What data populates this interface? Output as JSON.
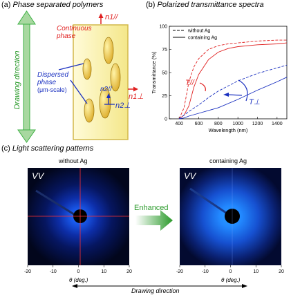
{
  "panel_a": {
    "label": "(a)",
    "title": "Phase separated polymers",
    "continuous_line1": "Continuous",
    "continuous_line2": "phase",
    "dispersed_line1": "Dispersed",
    "dispersed_line2": "phase",
    "dispersed_line3": "(μm-scale)",
    "n1_par": "n1//",
    "n1_perp": "n1⊥",
    "n2_par": "n2//",
    "n2_perp": "n2⊥",
    "drawing_direction": "Drawing direction",
    "colors": {
      "film": "#fbf3b0",
      "ellipse": "#e8c23a",
      "red": "#e02020",
      "blue": "#1a30c0",
      "green": "#3cb043"
    }
  },
  "panel_b": {
    "label": "(b)",
    "title": "Polarized transmittance spectra",
    "t_par": "T//",
    "t_perp": "T⊥"
  },
  "chart_data": {
    "type": "line",
    "xlabel": "Wavelength (nm)",
    "ylabel": "Transmittance (%)",
    "xlim": [
      300,
      1500
    ],
    "ylim": [
      0,
      100
    ],
    "xticks": [
      400,
      600,
      800,
      1000,
      1200,
      1400
    ],
    "yticks": [
      0,
      25,
      50,
      75,
      100
    ],
    "legend": {
      "position": "top-left",
      "entries": [
        "without Ag",
        "containing Ag"
      ]
    },
    "series": [
      {
        "name": "without Ag",
        "polarization": "T//",
        "style": "dashed",
        "color": "#e02020",
        "x": [
          400,
          450,
          500,
          550,
          600,
          700,
          800,
          900,
          1000,
          1200,
          1400,
          1500
        ],
        "y": [
          0,
          12,
          40,
          56,
          65,
          75,
          79,
          81,
          82,
          84,
          85,
          85
        ]
      },
      {
        "name": "containing Ag",
        "polarization": "T//",
        "style": "solid",
        "color": "#e02020",
        "x": [
          400,
          450,
          500,
          550,
          600,
          700,
          800,
          900,
          1000,
          1200,
          1400,
          1500
        ],
        "y": [
          0,
          4,
          14,
          34,
          48,
          64,
          72,
          76,
          78,
          80,
          81,
          82
        ]
      },
      {
        "name": "without Ag",
        "polarization": "T⊥",
        "style": "dashed",
        "color": "#1a30c0",
        "x": [
          400,
          450,
          500,
          600,
          700,
          800,
          1000,
          1200,
          1400,
          1500
        ],
        "y": [
          0,
          4,
          8,
          15,
          23,
          30,
          41,
          49,
          55,
          58
        ]
      },
      {
        "name": "containing Ag",
        "polarization": "T⊥",
        "style": "solid",
        "color": "#1a30c0",
        "x": [
          400,
          450,
          500,
          600,
          700,
          800,
          1000,
          1200,
          1400,
          1500
        ],
        "y": [
          0,
          1,
          3,
          6,
          9,
          12,
          21,
          31,
          40,
          45
        ]
      }
    ]
  },
  "panel_c": {
    "label": "(c)",
    "title": "Light scattering patterns",
    "left_title": "without Ag",
    "right_title": "containing Ag",
    "vv": "VV",
    "enhanced": "Enhanced",
    "axis_label": "θ (deg.)",
    "ticks": [
      "-20",
      "-10",
      "0",
      "10",
      "20"
    ],
    "drawing_direction": "Drawing direction"
  }
}
